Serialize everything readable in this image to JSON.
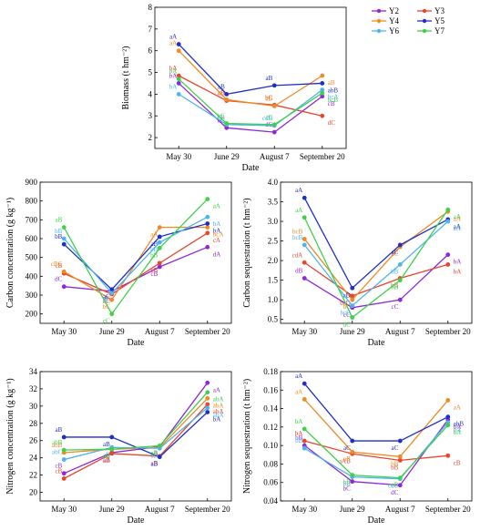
{
  "chart_data": [
    {
      "id": "biomass",
      "type": "line",
      "title": "",
      "xlabel": "Date",
      "ylabel": "Biomass (t hm⁻²)",
      "categories": [
        "May 30",
        "June 29",
        "August 7",
        "September 20"
      ],
      "ylim": [
        1.5,
        8
      ],
      "yticks": [
        2,
        3,
        4,
        5,
        6,
        7,
        8
      ],
      "legend": "top-right",
      "series": [
        {
          "name": "Y2",
          "values": [
            4.5,
            2.45,
            2.25,
            3.9
          ],
          "labels": [
            "bA",
            "bC",
            "dC",
            "cB"
          ]
        },
        {
          "name": "Y3",
          "values": [
            4.85,
            3.7,
            3.5,
            3.0
          ],
          "labels": [
            "bA",
            "aB",
            "bC",
            "dC"
          ]
        },
        {
          "name": "Y4",
          "values": [
            6.0,
            3.75,
            3.45,
            4.85
          ],
          "labels": [
            "aA",
            "aC",
            "bB",
            "aB"
          ]
        },
        {
          "name": "Y5",
          "values": [
            6.3,
            4.0,
            4.4,
            4.5
          ],
          "labels": [
            "aA",
            "aB",
            "aB",
            "abB"
          ]
        },
        {
          "name": "Y6",
          "values": [
            4.0,
            2.6,
            2.55,
            4.2
          ],
          "labels": [
            "bA",
            "bB",
            "cdB",
            "bcA"
          ]
        },
        {
          "name": "Y7",
          "values": [
            4.7,
            2.65,
            2.6,
            4.05
          ],
          "labels": [
            "bA",
            "bC",
            "cC",
            "bcB"
          ]
        }
      ]
    },
    {
      "id": "carbon-concentration",
      "type": "line",
      "title": "",
      "xlabel": "Date",
      "ylabel": "Carbon concentration (g kg⁻¹)",
      "categories": [
        "May 30",
        "June 29",
        "August 7",
        "September 20"
      ],
      "ylim": [
        150,
        900
      ],
      "yticks": [
        200,
        300,
        400,
        500,
        600,
        700,
        800,
        900
      ],
      "series": [
        {
          "name": "Y2",
          "values": [
            345,
            320,
            450,
            555
          ],
          "labels": [
            "dC",
            "aC",
            "cB",
            "dA"
          ]
        },
        {
          "name": "Y3",
          "values": [
            415,
            305,
            470,
            630
          ],
          "labels": [
            "cB",
            "aC",
            "cB",
            "cA"
          ]
        },
        {
          "name": "Y4",
          "values": [
            425,
            275,
            660,
            660
          ],
          "labels": [
            "cBC",
            "bC",
            "aA",
            "bcA"
          ]
        },
        {
          "name": "Y5",
          "values": [
            570,
            330,
            610,
            680
          ],
          "labels": [
            "bB",
            "aC",
            "aB",
            "bA"
          ]
        },
        {
          "name": "Y6",
          "values": [
            600,
            310,
            580,
            715
          ],
          "labels": [
            "bB",
            "aC",
            "bB",
            "bA"
          ]
        },
        {
          "name": "Y7",
          "values": [
            660,
            200,
            550,
            810
          ],
          "labels": [
            "aB",
            "cC",
            "bB",
            "aA"
          ]
        }
      ]
    },
    {
      "id": "carbon-sequestration",
      "type": "line",
      "title": "",
      "xlabel": "Date",
      "ylabel": "Carbon sequestration (t hm⁻²)",
      "categories": [
        "May 30",
        "June 29",
        "August 7",
        "September 20"
      ],
      "ylim": [
        0.4,
        4.0
      ],
      "yticks": [
        0.5,
        1.0,
        1.5,
        2.0,
        2.5,
        3.0,
        3.5,
        4.0
      ],
      "series": [
        {
          "name": "Y2",
          "values": [
            1.55,
            0.8,
            1.0,
            2.15
          ],
          "labels": [
            "dB",
            "cC",
            "cC",
            "bA"
          ]
        },
        {
          "name": "Y3",
          "values": [
            1.95,
            1.1,
            1.55,
            1.9
          ],
          "labels": [
            "cdA",
            "bcD",
            "bB",
            "bA"
          ]
        },
        {
          "name": "Y4",
          "values": [
            2.55,
            1.0,
            2.35,
            3.25
          ],
          "labels": [
            "bcB",
            "bC",
            "aC",
            "aA"
          ]
        },
        {
          "name": "Y5",
          "values": [
            3.6,
            1.3,
            2.4,
            3.05
          ],
          "labels": [
            "aA",
            "aD",
            "aC",
            "aA"
          ]
        },
        {
          "name": "Y6",
          "values": [
            2.4,
            0.85,
            1.9,
            3.0
          ],
          "labels": [
            "bcB",
            "bcC",
            "bB",
            "aA"
          ]
        },
        {
          "name": "Y7",
          "values": [
            3.1,
            0.55,
            1.5,
            3.3
          ],
          "labels": [
            "aA",
            "dC",
            "bB",
            "aA"
          ]
        }
      ]
    },
    {
      "id": "nitrogen-concentration",
      "type": "line",
      "title": "",
      "xlabel": "Date",
      "ylabel": "Nitrogen concentration (g kg⁻¹)",
      "categories": [
        "May 30",
        "June 29",
        "August 7",
        "September 20"
      ],
      "ylim": [
        19,
        34
      ],
      "yticks": [
        20,
        22,
        24,
        26,
        28,
        30,
        32,
        34
      ],
      "series": [
        {
          "name": "Y2",
          "values": [
            22.2,
            24.6,
            25.3,
            32.7
          ],
          "labels": [
            "cB",
            "aB",
            "aB",
            "aA"
          ]
        },
        {
          "name": "Y3",
          "values": [
            21.6,
            24.5,
            24.2,
            30.2
          ],
          "labels": [
            "cB",
            "aB",
            "aB",
            "abA"
          ]
        },
        {
          "name": "Y4",
          "values": [
            24.6,
            25.0,
            25.2,
            30.9
          ],
          "labels": [
            "abB",
            "aB",
            "aB",
            "abA"
          ]
        },
        {
          "name": "Y5",
          "values": [
            26.4,
            26.4,
            24.1,
            29.3
          ],
          "labels": [
            "aB",
            "aB",
            "aB",
            "bA"
          ]
        },
        {
          "name": "Y6",
          "values": [
            23.8,
            25.2,
            25.1,
            29.8
          ],
          "labels": [
            "abC",
            "aB",
            "aB",
            "abA"
          ]
        },
        {
          "name": "Y7",
          "values": [
            24.9,
            25.0,
            25.4,
            31.6
          ],
          "labels": [
            "abB",
            "aB",
            "aB",
            "abA"
          ]
        }
      ]
    },
    {
      "id": "nitrogen-sequestration",
      "type": "line",
      "title": "",
      "xlabel": "Date",
      "ylabel": "Nitrogen sequestration (t hm⁻²)",
      "categories": [
        "May 30",
        "June 29",
        "August 7",
        "September 20"
      ],
      "ylim": [
        0.04,
        0.18
      ],
      "yticks": [
        0.04,
        0.06,
        0.08,
        0.1,
        0.12,
        0.14,
        0.16,
        0.18
      ],
      "series": [
        {
          "name": "Y2",
          "values": [
            0.1,
            0.061,
            0.057,
            0.128
          ],
          "labels": [
            "bB",
            "bC",
            "dC",
            "bA"
          ]
        },
        {
          "name": "Y3",
          "values": [
            0.105,
            0.091,
            0.084,
            0.089
          ],
          "labels": [
            "bA",
            "aAB",
            "bB",
            "cB"
          ]
        },
        {
          "name": "Y4",
          "values": [
            0.15,
            0.093,
            0.088,
            0.149
          ],
          "labels": [
            "aA",
            "aB",
            "bB",
            "aA"
          ]
        },
        {
          "name": "Y5",
          "values": [
            0.167,
            0.105,
            0.105,
            0.131
          ],
          "labels": [
            "aA",
            "aC",
            "aC",
            "abB"
          ]
        },
        {
          "name": "Y6",
          "values": [
            0.097,
            0.066,
            0.064,
            0.125
          ],
          "labels": [
            "bB",
            "bB",
            "cdC",
            "bA"
          ]
        },
        {
          "name": "Y7",
          "values": [
            0.118,
            0.068,
            0.065,
            0.122
          ],
          "labels": [
            "bA",
            "bB",
            "cB",
            "bA"
          ]
        }
      ]
    }
  ],
  "colors": {
    "Y2": "#8e27d9",
    "Y3": "#e8452c",
    "Y4": "#f08a24",
    "Y5": "#1f2fc8",
    "Y6": "#4fb3f0",
    "Y7": "#3fd14a"
  }
}
